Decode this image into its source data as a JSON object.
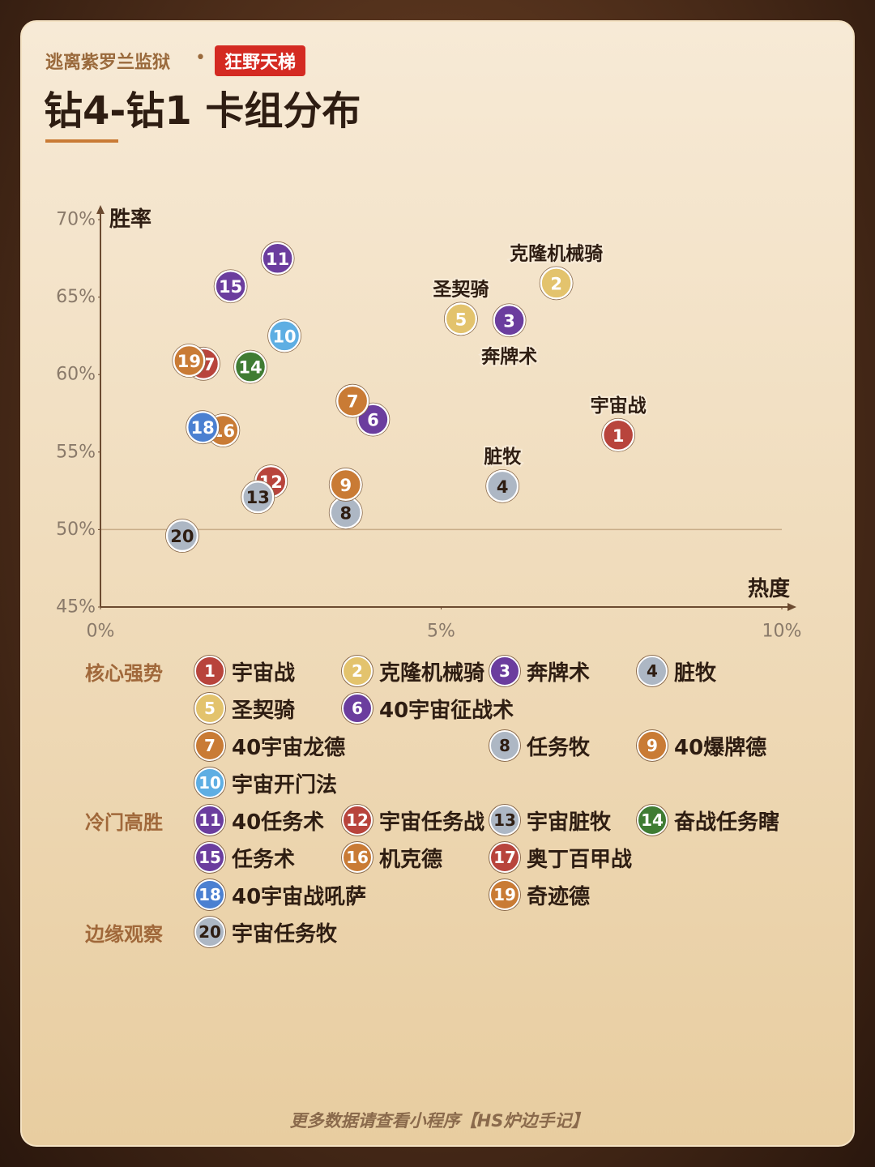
{
  "header": {
    "subtitle": "逃离紫罗兰监狱",
    "badge": "狂野天梯"
  },
  "footer": "更多数据请查看小程序【HS炉边手记】",
  "chart_data": {
    "type": "scatter",
    "title": "钻4-钻1 卡组分布",
    "x_label": "热度",
    "y_label": "胜率",
    "xlim": [
      0,
      10
    ],
    "xticks": [
      {
        "value": 0,
        "label": "0%"
      },
      {
        "value": 5,
        "label": "5%"
      },
      {
        "value": 10,
        "label": "10%"
      }
    ],
    "ylim": [
      45,
      70
    ],
    "yticks": [
      {
        "value": 45,
        "label": "45%"
      },
      {
        "value": 50,
        "label": "50%"
      },
      {
        "value": 55,
        "label": "55%"
      },
      {
        "value": 60,
        "label": "60%"
      },
      {
        "value": 65,
        "label": "65%"
      },
      {
        "value": 70,
        "label": "70%"
      }
    ],
    "reference_line": 50,
    "groups": [
      "核心强势",
      "冷门高胜",
      "边缘观察"
    ],
    "points": [
      {
        "id": 1,
        "name": "宇宙战",
        "color": "#b8443c",
        "x": 7.6,
        "y": 56.1,
        "group": 0,
        "annotation": "above"
      },
      {
        "id": 2,
        "name": "克隆机械骑",
        "color": "#e3c36d",
        "x": 6.69,
        "y": 65.9,
        "group": 0,
        "annotation": "above"
      },
      {
        "id": 3,
        "name": "奔牌术",
        "color": "#6b3d9e",
        "x": 6.0,
        "y": 63.5,
        "group": 0,
        "annotation": "below"
      },
      {
        "id": 4,
        "name": "脏牧",
        "color": "#adb7c4",
        "x": 5.9,
        "y": 52.8,
        "group": 0,
        "annotation": "above"
      },
      {
        "id": 5,
        "name": "圣契骑",
        "color": "#e3c36d",
        "x": 5.29,
        "y": 63.6,
        "group": 0,
        "annotation": "above"
      },
      {
        "id": 6,
        "name": "40宇宙征战术",
        "color": "#6b3d9e",
        "x": 4.0,
        "y": 57.1,
        "group": 0
      },
      {
        "id": 7,
        "name": "40宇宙龙德",
        "color": "#c97b35",
        "x": 3.7,
        "y": 58.3,
        "group": 0
      },
      {
        "id": 8,
        "name": "任务牧",
        "color": "#adb7c4",
        "x": 3.6,
        "y": 51.1,
        "group": 0
      },
      {
        "id": 9,
        "name": "40爆牌德",
        "color": "#c97b35",
        "x": 3.6,
        "y": 52.9,
        "group": 0
      },
      {
        "id": 10,
        "name": "宇宙开门法",
        "color": "#5eaee3",
        "x": 2.7,
        "y": 62.5,
        "group": 0
      },
      {
        "id": 11,
        "name": "40任务术",
        "color": "#6b3d9e",
        "x": 2.6,
        "y": 67.5,
        "group": 1
      },
      {
        "id": 12,
        "name": "宇宙任务战",
        "color": "#b8443c",
        "x": 2.5,
        "y": 53.1,
        "group": 1
      },
      {
        "id": 13,
        "name": "宇宙脏牧",
        "color": "#adb7c4",
        "x": 2.31,
        "y": 52.1,
        "group": 1
      },
      {
        "id": 14,
        "name": "奋战任务瞎",
        "color": "#3f7c33",
        "x": 2.2,
        "y": 60.5,
        "group": 1
      },
      {
        "id": 15,
        "name": "任务术",
        "color": "#6b3d9e",
        "x": 1.91,
        "y": 65.7,
        "group": 1
      },
      {
        "id": 16,
        "name": "机克德",
        "color": "#c97b35",
        "x": 1.8,
        "y": 56.4,
        "group": 1
      },
      {
        "id": 17,
        "name": "奥丁百甲战",
        "color": "#b8443c",
        "x": 1.51,
        "y": 60.7,
        "group": 1
      },
      {
        "id": 18,
        "name": "40宇宙战吼萨",
        "color": "#4b80d1",
        "x": 1.5,
        "y": 56.6,
        "group": 1
      },
      {
        "id": 19,
        "name": "奇迹德",
        "color": "#c97b35",
        "x": 1.3,
        "y": 60.9,
        "group": 1
      },
      {
        "id": 20,
        "name": "宇宙任务牧",
        "color": "#adb7c4",
        "x": 1.2,
        "y": 49.6,
        "group": 2
      }
    ]
  }
}
